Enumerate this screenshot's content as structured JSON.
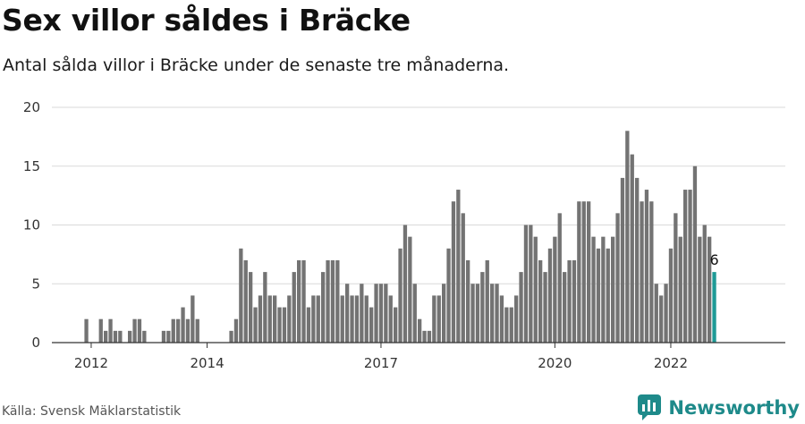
{
  "header": {
    "title": "Sex villor såldes i Bräcke",
    "subtitle": "Antal sålda villor i Bräcke under de senaste tre månaderna."
  },
  "footer": {
    "source": "Källa: Svensk Mäklarstatistik",
    "brand": "Newsworthy",
    "brand_icon": "newsworthy-logo-icon",
    "brand_color": "#1e8a8a"
  },
  "chart_data": {
    "type": "bar",
    "title": "Sex villor såldes i Bräcke",
    "subtitle": "Antal sålda villor i Bräcke under de senaste tre månaderna.",
    "xlabel": "",
    "ylabel": "",
    "ylim": [
      0,
      20
    ],
    "yticks": [
      "0",
      "5",
      "10",
      "15",
      "20"
    ],
    "xticks": [
      {
        "label": "2012",
        "month": "2012-01"
      },
      {
        "label": "2014",
        "month": "2014-01"
      },
      {
        "label": "2017",
        "month": "2017-01"
      },
      {
        "label": "2020",
        "month": "2020-01"
      },
      {
        "label": "2022",
        "month": "2022-01"
      }
    ],
    "grid": true,
    "bar_color": "#737373",
    "highlight_color": "#1e9a96",
    "highlight_label": "6",
    "categories": [
      "2011-06",
      "2011-07",
      "2011-08",
      "2011-09",
      "2011-10",
      "2011-11",
      "2011-12",
      "2012-01",
      "2012-02",
      "2012-03",
      "2012-04",
      "2012-05",
      "2012-06",
      "2012-07",
      "2012-08",
      "2012-09",
      "2012-10",
      "2012-11",
      "2012-12",
      "2013-01",
      "2013-02",
      "2013-03",
      "2013-04",
      "2013-05",
      "2013-06",
      "2013-07",
      "2013-08",
      "2013-09",
      "2013-10",
      "2013-11",
      "2013-12",
      "2014-01",
      "2014-02",
      "2014-03",
      "2014-04",
      "2014-05",
      "2014-06",
      "2014-07",
      "2014-08",
      "2014-09",
      "2014-10",
      "2014-11",
      "2014-12",
      "2015-01",
      "2015-02",
      "2015-03",
      "2015-04",
      "2015-05",
      "2015-06",
      "2015-07",
      "2015-08",
      "2015-09",
      "2015-10",
      "2015-11",
      "2015-12",
      "2016-01",
      "2016-02",
      "2016-03",
      "2016-04",
      "2016-05",
      "2016-06",
      "2016-07",
      "2016-08",
      "2016-09",
      "2016-10",
      "2016-11",
      "2016-12",
      "2017-01",
      "2017-02",
      "2017-03",
      "2017-04",
      "2017-05",
      "2017-06",
      "2017-07",
      "2017-08",
      "2017-09",
      "2017-10",
      "2017-11",
      "2017-12",
      "2018-01",
      "2018-02",
      "2018-03",
      "2018-04",
      "2018-05",
      "2018-06",
      "2018-07",
      "2018-08",
      "2018-09",
      "2018-10",
      "2018-11",
      "2018-12",
      "2019-01",
      "2019-02",
      "2019-03",
      "2019-04",
      "2019-05",
      "2019-06",
      "2019-07",
      "2019-08",
      "2019-09",
      "2019-10",
      "2019-11",
      "2019-12",
      "2020-01",
      "2020-02",
      "2020-03",
      "2020-04",
      "2020-05",
      "2020-06",
      "2020-07",
      "2020-08",
      "2020-09",
      "2020-10",
      "2020-11",
      "2020-12",
      "2021-01",
      "2021-02",
      "2021-03",
      "2021-04",
      "2021-05",
      "2021-06",
      "2021-07",
      "2021-08",
      "2021-09",
      "2021-10",
      "2021-11",
      "2021-12",
      "2022-01",
      "2022-02",
      "2022-03",
      "2022-04",
      "2022-05",
      "2022-06",
      "2022-07",
      "2022-08",
      "2022-09",
      "2022-10"
    ],
    "values": [
      0,
      0,
      0,
      0,
      0,
      0,
      2,
      0,
      0,
      2,
      1,
      2,
      1,
      1,
      0,
      1,
      2,
      2,
      1,
      0,
      0,
      0,
      1,
      1,
      2,
      2,
      3,
      2,
      4,
      2,
      0,
      0,
      0,
      0,
      0,
      0,
      1,
      2,
      8,
      7,
      6,
      3,
      4,
      6,
      4,
      4,
      3,
      3,
      4,
      6,
      7,
      7,
      3,
      4,
      4,
      6,
      7,
      7,
      7,
      4,
      5,
      4,
      4,
      5,
      4,
      3,
      5,
      5,
      5,
      4,
      3,
      8,
      10,
      9,
      5,
      2,
      1,
      1,
      4,
      4,
      5,
      8,
      12,
      13,
      11,
      7,
      5,
      5,
      6,
      7,
      5,
      5,
      4,
      3,
      3,
      4,
      6,
      10,
      10,
      9,
      7,
      6,
      8,
      9,
      11,
      6,
      7,
      7,
      12,
      12,
      12,
      9,
      8,
      9,
      8,
      9,
      11,
      14,
      18,
      16,
      14,
      12,
      13,
      12,
      5,
      4,
      5,
      8,
      11,
      9,
      13,
      13,
      15,
      9,
      10,
      9,
      6
    ]
  }
}
